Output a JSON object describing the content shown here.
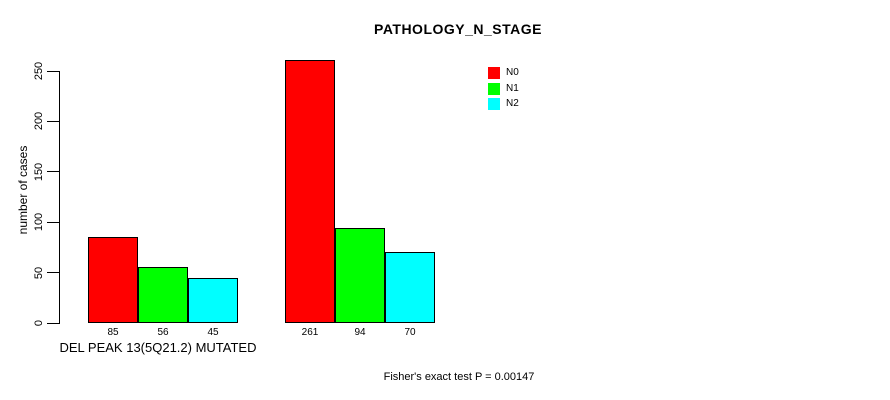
{
  "chart_data": {
    "type": "bar",
    "title": "PATHOLOGY_N_STAGE",
    "ylabel": "number of cases",
    "xlabel": "",
    "categories": [
      "DEL PEAK 13(5Q21.2) MUTATED",
      ""
    ],
    "series": [
      {
        "name": "N0",
        "color": "#ff0000",
        "values": [
          85,
          261
        ]
      },
      {
        "name": "N1",
        "color": "#00ff00",
        "values": [
          56,
          94
        ]
      },
      {
        "name": "N2",
        "color": "#00ffff",
        "values": [
          45,
          70
        ]
      }
    ],
    "bar_value_labels": [
      [
        85,
        56,
        45
      ],
      [
        261,
        94,
        70
      ]
    ],
    "yticks": [
      0,
      50,
      100,
      150,
      200,
      250
    ],
    "ylim": [
      0,
      261
    ],
    "grid": false,
    "legend_position": "top-right",
    "annotation": "Fisher's exact test P = 0.00147",
    "text_color": "#000000",
    "background_color": "#ffffff"
  }
}
